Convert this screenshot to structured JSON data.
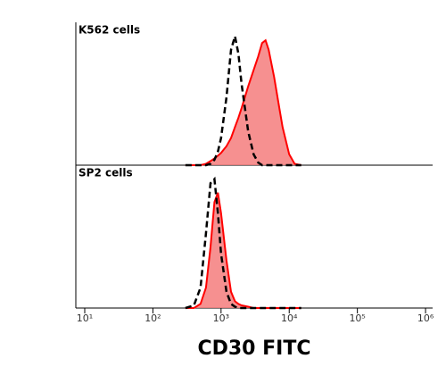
{
  "chart_data": [
    {
      "type": "area",
      "title": "K562 cells",
      "log_x": true,
      "xlim": [
        7.4,
        1270000
      ],
      "ylim": [
        0,
        100
      ],
      "x": [
        300,
        400,
        500,
        600,
        700,
        800,
        900,
        1000,
        1200,
        1400,
        1600,
        1800,
        2000,
        2500,
        3000,
        3500,
        4000,
        4500,
        5000,
        6000,
        7000,
        8000,
        10000,
        12000,
        15000
      ],
      "series": [
        {
          "color": "#ff0000",
          "fill": "#f47c7c",
          "dashed": false,
          "values": [
            0,
            0,
            0,
            1,
            3,
            5,
            7,
            9,
            14,
            20,
            28,
            35,
            42,
            58,
            70,
            80,
            90,
            92,
            85,
            65,
            45,
            28,
            8,
            1,
            0
          ]
        },
        {
          "color": "#000000",
          "fill": null,
          "dashed": true,
          "values": [
            0,
            0,
            0,
            0,
            1,
            4,
            10,
            20,
            50,
            85,
            95,
            82,
            60,
            25,
            8,
            2,
            0,
            0,
            0,
            0,
            0,
            0,
            0,
            0,
            0
          ]
        }
      ]
    },
    {
      "type": "area",
      "title": "SP2 cells",
      "log_x": true,
      "xlim": [
        7.4,
        1270000
      ],
      "ylim": [
        0,
        100
      ],
      "xlabel": "CD30 FITC",
      "xticks": [
        {
          "value": 10,
          "label": "10¹"
        },
        {
          "value": 100,
          "label": "10²"
        },
        {
          "value": 1000,
          "label": "10³"
        },
        {
          "value": 10000,
          "label": "10⁴"
        },
        {
          "value": 100000,
          "label": "10⁵"
        },
        {
          "value": 1000000,
          "label": "10⁶"
        }
      ],
      "x": [
        300,
        400,
        500,
        600,
        700,
        800,
        900,
        1000,
        1200,
        1400,
        1600,
        1800,
        2000,
        2500,
        3000,
        3500,
        4000,
        4500,
        5000,
        6000,
        7000,
        8000,
        10000,
        12000,
        15000
      ],
      "series": [
        {
          "color": "#ff0000",
          "fill": "#f47c7c",
          "dashed": false,
          "values": [
            0,
            0,
            3,
            15,
            45,
            78,
            85,
            70,
            35,
            12,
            5,
            3,
            2,
            1,
            0,
            0,
            0,
            0,
            0,
            0,
            0,
            0,
            0,
            0,
            0
          ]
        },
        {
          "color": "#000000",
          "fill": null,
          "dashed": true,
          "values": [
            0,
            2,
            15,
            55,
            92,
            95,
            70,
            40,
            12,
            3,
            1,
            0,
            0,
            0,
            0,
            0,
            0,
            0,
            0,
            0,
            0,
            0,
            0,
            0,
            0
          ]
        }
      ]
    }
  ]
}
